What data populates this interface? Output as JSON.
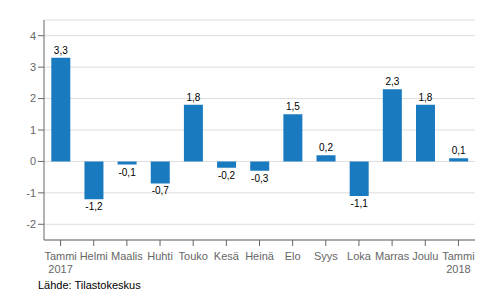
{
  "chart_data": {
    "type": "bar",
    "categories": [
      "Tammi\n2017",
      "Helmi",
      "Maalis",
      "Huhti",
      "Touko",
      "Kesä",
      "Heinä",
      "Elo",
      "Syys",
      "Loka",
      "Marras",
      "Joulu",
      "Tammi\n2018"
    ],
    "values": [
      3.3,
      -1.2,
      -0.1,
      -0.7,
      1.8,
      -0.2,
      -0.3,
      1.5,
      0.2,
      -1.1,
      2.3,
      1.8,
      0.1
    ],
    "value_labels": [
      "3,3",
      "-1,2",
      "-0,1",
      "-0,7",
      "1,8",
      "-0,2",
      "-0,3",
      "1,5",
      "0,2",
      "-1,1",
      "2,3",
      "1,8",
      "0,1"
    ],
    "data_labels": true,
    "color": "#1a7abf",
    "ylim": [
      -2.5,
      4.5
    ],
    "yticks": [
      -2,
      -1,
      0,
      1,
      2,
      3,
      4
    ],
    "grid": true,
    "annotations": [
      "Lähde: Tilastokeskus"
    ]
  }
}
